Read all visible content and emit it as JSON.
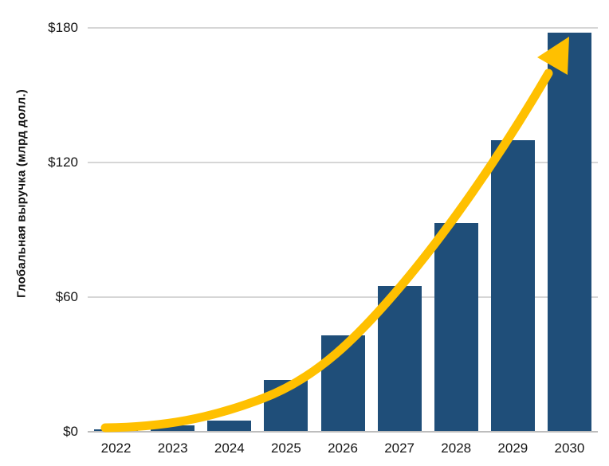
{
  "chart_data": {
    "type": "bar",
    "title": "",
    "categories": [
      "2022",
      "2023",
      "2024",
      "2025",
      "2026",
      "2027",
      "2028",
      "2029",
      "2030"
    ],
    "values": [
      1,
      3,
      5,
      23,
      43,
      65,
      93,
      130,
      178
    ],
    "xlabel": "",
    "ylabel": "Глобальная выручка (млрд долл.)",
    "ylim": [
      0,
      180
    ],
    "yticks": [
      0,
      60,
      120,
      180
    ],
    "ytick_labels": [
      "$0",
      "$60",
      "$120",
      "$180"
    ],
    "grid": true,
    "legend": false,
    "colors": {
      "bar": "#1F4E79",
      "trend_arrow": "#FFC000",
      "gridline": "#D6D6D6",
      "axis_line": "#BDBDBD",
      "text": "#151515"
    },
    "annotations": [
      {
        "type": "curved-arrow",
        "color": "#FFC000",
        "description": "exponential growth trend arrow from 2022 baseline to above the 2030 bar"
      }
    ]
  }
}
